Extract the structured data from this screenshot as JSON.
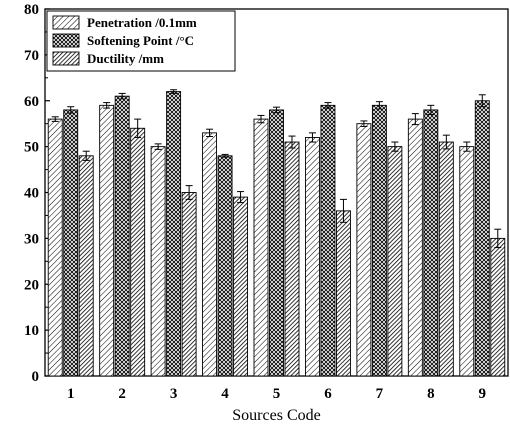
{
  "chart_data": {
    "type": "bar",
    "categories": [
      "1",
      "2",
      "3",
      "4",
      "5",
      "6",
      "7",
      "8",
      "9"
    ],
    "series": [
      {
        "name": "Penetration /0.1mm",
        "pattern": "diagonal-hatch",
        "values": [
          56,
          59,
          50,
          53,
          56,
          52,
          55,
          56,
          50
        ],
        "errors": [
          0.5,
          0.6,
          0.6,
          0.8,
          0.8,
          1.0,
          0.6,
          1.2,
          1.0
        ]
      },
      {
        "name": "Softening Point /°C",
        "pattern": "crosshatch",
        "values": [
          58,
          61,
          62,
          48,
          58,
          59,
          59,
          58,
          60
        ],
        "errors": [
          0.7,
          0.6,
          0.4,
          0.3,
          0.6,
          0.6,
          0.8,
          1.0,
          1.3
        ]
      },
      {
        "name": "Ductility /mm",
        "pattern": "dense-diagonal-hatch",
        "values": [
          48,
          54,
          40,
          39,
          51,
          36,
          50,
          51,
          30
        ],
        "errors": [
          1.0,
          2.0,
          1.5,
          1.2,
          1.3,
          2.5,
          1.0,
          1.5,
          2.0
        ]
      }
    ],
    "xlabel": "Sources Code",
    "ylabel": "",
    "ylim": [
      0,
      80
    ],
    "yticks": [
      0,
      10,
      20,
      30,
      40,
      50,
      60,
      70,
      80
    ],
    "grid": false,
    "legend_position": "top-left",
    "colors": {
      "bar_fill": "#ffffff",
      "stroke": "#000000"
    }
  }
}
